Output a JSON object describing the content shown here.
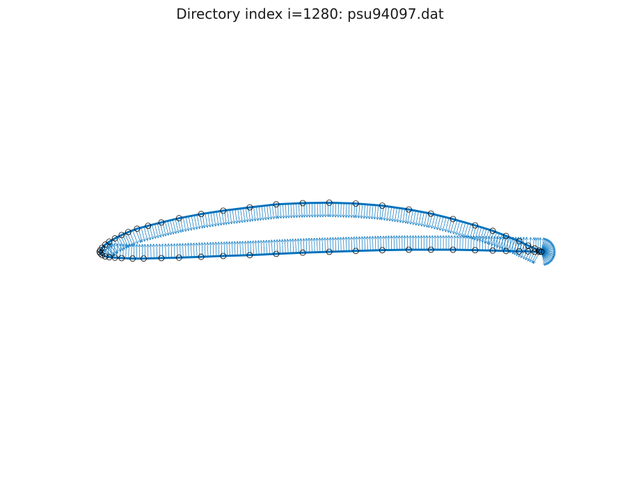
{
  "title": "Directory index i=1280: psu94097.dat",
  "chart_data": {
    "type": "line",
    "title": "Directory index i=1280: psu94097.dat",
    "xlabel": "",
    "ylabel": "",
    "axes_visible": false,
    "grid": false,
    "xlim": [
      -0.03,
      1.03
    ],
    "ylim": [
      -0.45,
      0.45
    ],
    "colors": {
      "outline": "#0072BD",
      "points": "#000000",
      "normals": "#0072BD"
    },
    "series": [
      {
        "x": [
          1.0,
          0.995,
          0.985,
          0.97,
          0.95,
          0.92,
          0.89,
          0.85,
          0.8,
          0.75,
          0.7,
          0.64,
          0.58,
          0.52,
          0.46,
          0.4,
          0.34,
          0.28,
          0.23,
          0.18,
          0.14,
          0.11,
          0.085,
          0.065,
          0.05,
          0.035,
          0.022,
          0.013,
          0.006,
          0.002,
          0.0,
          0.002,
          0.006,
          0.013,
          0.022,
          0.035,
          0.05,
          0.075,
          0.1,
          0.14,
          0.18,
          0.23,
          0.28,
          0.34,
          0.4,
          0.46,
          0.52,
          0.58,
          0.64,
          0.7,
          0.75,
          0.8,
          0.85,
          0.89,
          0.92,
          0.95,
          0.97,
          0.985,
          0.995,
          1.0
        ],
        "y": [
          0.0,
          0.003,
          0.008,
          0.015,
          0.025,
          0.038,
          0.05,
          0.063,
          0.078,
          0.091,
          0.101,
          0.11,
          0.115,
          0.117,
          0.116,
          0.113,
          0.106,
          0.098,
          0.09,
          0.08,
          0.07,
          0.062,
          0.055,
          0.047,
          0.04,
          0.032,
          0.024,
          0.017,
          0.01,
          0.004,
          0.0,
          -0.004,
          -0.008,
          -0.011,
          -0.013,
          -0.014,
          -0.015,
          -0.016,
          -0.016,
          -0.015,
          -0.014,
          -0.012,
          -0.01,
          -0.008,
          -0.005,
          -0.002,
          0.0,
          0.002,
          0.004,
          0.005,
          0.005,
          0.005,
          0.004,
          0.003,
          0.002,
          0.001,
          0.001,
          0.0,
          0.0,
          0.0
        ]
      }
    ]
  }
}
